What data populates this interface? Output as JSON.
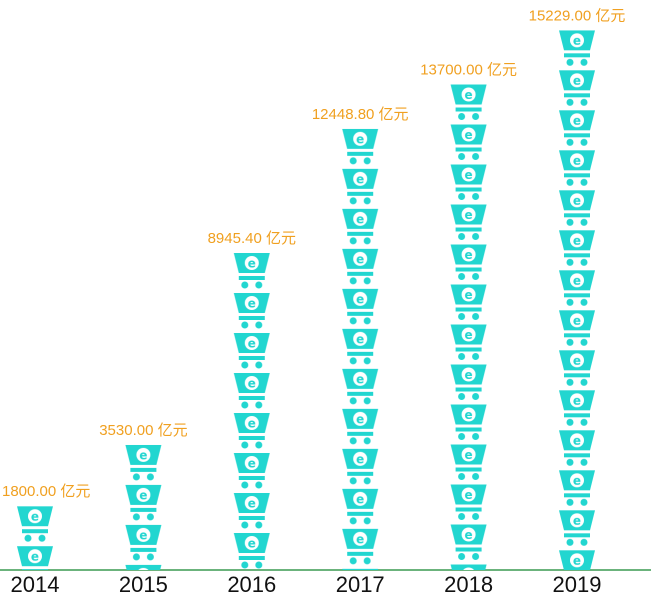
{
  "chart_data": {
    "type": "pictorial-bar",
    "categories": [
      "2014",
      "2015",
      "2016",
      "2017",
      "2018",
      "2019"
    ],
    "values": [
      1800,
      3530,
      8945.4,
      12448.8,
      13700,
      15229
    ],
    "value_labels": [
      "1800.00 亿元",
      "3530.00 亿元",
      "8945.40 亿元",
      "12448.80 亿元",
      "13700.00 亿元",
      "15229.00 亿元"
    ],
    "color": "#22d6d0",
    "label_color": "#f0a020",
    "ylim": [
      0,
      16000
    ]
  }
}
